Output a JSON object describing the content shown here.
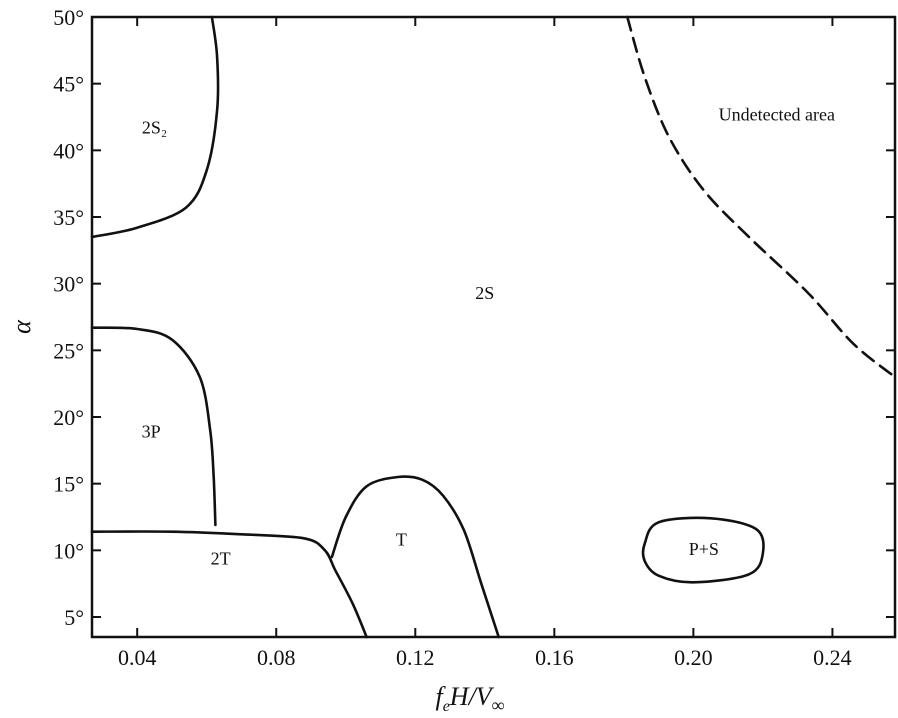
{
  "chart_data": {
    "type": "line",
    "title": "",
    "xlabel": "f_e H / V_∞",
    "ylabel": "α",
    "xlim": [
      0.027,
      0.258
    ],
    "ylim": [
      3.5,
      50
    ],
    "x_ticks": [
      0.04,
      0.08,
      0.12,
      0.16,
      0.2,
      0.24
    ],
    "x_tick_labels": [
      "0.04",
      "0.08",
      "0.12",
      "0.16",
      "0.20",
      "0.24"
    ],
    "y_ticks": [
      5,
      10,
      15,
      20,
      25,
      30,
      35,
      40,
      45,
      50
    ],
    "y_tick_labels": [
      "5°",
      "10°",
      "15°",
      "20°",
      "25°",
      "30°",
      "35°",
      "40°",
      "45°",
      "50°"
    ],
    "grid": false,
    "boundaries": [
      {
        "style": "solid",
        "points": [
          [
            0.027,
            33.5
          ],
          [
            0.04,
            34.2
          ],
          [
            0.054,
            35.7
          ],
          [
            0.06,
            38.5
          ],
          [
            0.063,
            43
          ],
          [
            0.063,
            47
          ],
          [
            0.0615,
            50
          ]
        ]
      },
      {
        "style": "solid",
        "points": [
          [
            0.027,
            26.7
          ],
          [
            0.04,
            26.6
          ],
          [
            0.05,
            25.8
          ],
          [
            0.058,
            23
          ],
          [
            0.061,
            19
          ],
          [
            0.062,
            15.5
          ],
          [
            0.0625,
            11.9
          ]
        ]
      },
      {
        "style": "solid",
        "points": [
          [
            0.027,
            11.4
          ],
          [
            0.05,
            11.4
          ],
          [
            0.07,
            11.2
          ],
          [
            0.088,
            10.9
          ],
          [
            0.094,
            10
          ],
          [
            0.097,
            8.5
          ],
          [
            0.102,
            6
          ],
          [
            0.106,
            3.5
          ]
        ]
      },
      {
        "style": "solid",
        "points": [
          [
            0.096,
            9.5
          ],
          [
            0.1,
            12.5
          ],
          [
            0.106,
            14.8
          ],
          [
            0.115,
            15.5
          ],
          [
            0.122,
            15.3
          ],
          [
            0.128,
            14.1
          ],
          [
            0.134,
            11.5
          ],
          [
            0.139,
            7.5
          ],
          [
            0.144,
            3.5
          ]
        ]
      },
      {
        "style": "solid",
        "closed": true,
        "points": [
          [
            0.186,
            10.5
          ],
          [
            0.19,
            12.1
          ],
          [
            0.205,
            12.4
          ],
          [
            0.218,
            11.6
          ],
          [
            0.22,
            9.8
          ],
          [
            0.216,
            8.2
          ],
          [
            0.2,
            7.6
          ],
          [
            0.19,
            8.1
          ],
          [
            0.186,
            9.2
          ]
        ]
      },
      {
        "style": "dashed",
        "points": [
          [
            0.181,
            50
          ],
          [
            0.186,
            45.5
          ],
          [
            0.193,
            41
          ],
          [
            0.203,
            37
          ],
          [
            0.216,
            33.5
          ],
          [
            0.233,
            29.3
          ],
          [
            0.246,
            25.5
          ],
          [
            0.258,
            23
          ]
        ]
      }
    ],
    "annotations": [
      {
        "text": "2S₂",
        "x": 0.045,
        "y": 41.7
      },
      {
        "text": "3P",
        "x": 0.044,
        "y": 18.9
      },
      {
        "text": "2S",
        "x": 0.14,
        "y": 29.3
      },
      {
        "text": "2T",
        "x": 0.064,
        "y": 9.4
      },
      {
        "text": "T",
        "x": 0.116,
        "y": 10.8
      },
      {
        "text": "P+S",
        "x": 0.203,
        "y": 10.1
      },
      {
        "text": "Undetected area",
        "x": 0.224,
        "y": 42.7
      }
    ]
  }
}
